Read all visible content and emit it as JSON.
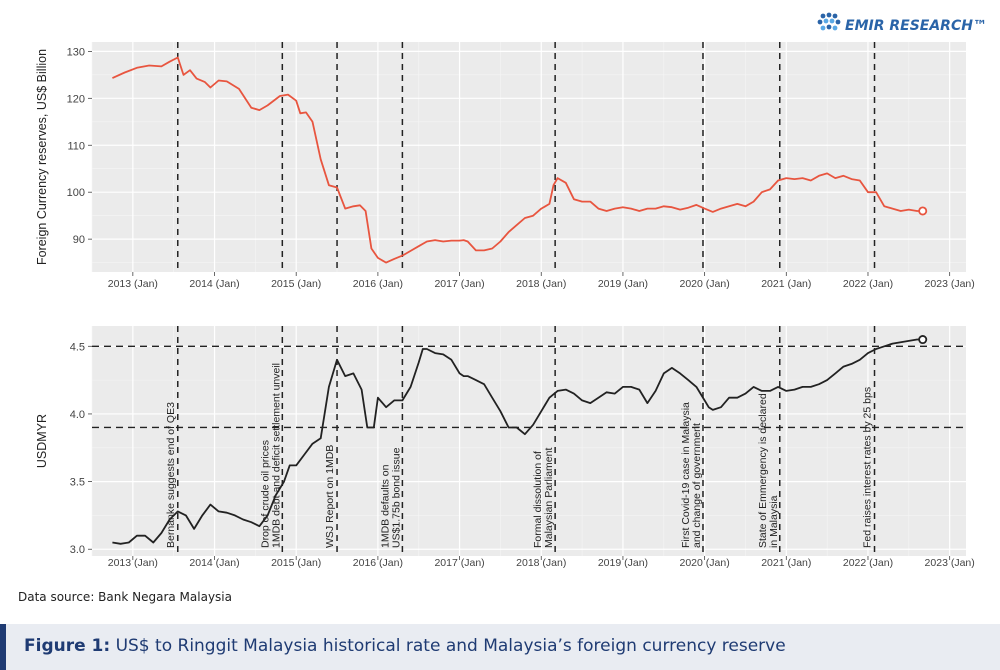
{
  "brand": {
    "logo_text": "EMIR RESEARCH™",
    "accent": "#2a64a8"
  },
  "source_note": "Data source: Bank Negara Malaysia",
  "figure_caption": {
    "label": "Figure 1:",
    "text": "US$ to Ringgit Malaysia historical rate and Malaysia’s foreign currency reserve",
    "color": "#1f3b73"
  },
  "chart_data": [
    {
      "type": "line",
      "ylabel": "Foreign Currency reserves, US$ Billion",
      "xlabel": "",
      "x_ticks": [
        "2013 (Jan)",
        "2014 (Jan)",
        "2015 (Jan)",
        "2016 (Jan)",
        "2017 (Jan)",
        "2018 (Jan)",
        "2019 (Jan)",
        "2020 (Jan)",
        "2021 (Jan)",
        "2022 (Jan)",
        "2023 (Jan)"
      ],
      "y_ticks": [
        90,
        100,
        110,
        120,
        130
      ],
      "ylim": [
        83,
        132
      ],
      "xlim": [
        2012.5,
        2023.2
      ],
      "grid": true,
      "line_color": "#e8553f",
      "series": [
        {
          "x": [
            2012.75,
            2012.9,
            2013.05,
            2013.2,
            2013.35,
            2013.45,
            2013.55,
            2013.62,
            2013.7,
            2013.78,
            2013.88,
            2013.95,
            2014.05,
            2014.15,
            2014.3,
            2014.45,
            2014.55,
            2014.65,
            2014.8,
            2014.9,
            2015.0,
            2015.05,
            2015.12,
            2015.2,
            2015.3,
            2015.4,
            2015.5,
            2015.6,
            2015.7,
            2015.78,
            2015.85,
            2015.92,
            2016.0,
            2016.1,
            2016.2,
            2016.3,
            2016.4,
            2016.5,
            2016.6,
            2016.7,
            2016.8,
            2016.9,
            2017.0,
            2017.05,
            2017.1,
            2017.2,
            2017.3,
            2017.4,
            2017.5,
            2017.6,
            2017.7,
            2017.8,
            2017.9,
            2018.0,
            2018.05,
            2018.1,
            2018.15,
            2018.2,
            2018.3,
            2018.4,
            2018.5,
            2018.6,
            2018.7,
            2018.8,
            2018.9,
            2019.0,
            2019.1,
            2019.2,
            2019.3,
            2019.4,
            2019.5,
            2019.6,
            2019.7,
            2019.8,
            2019.9,
            2020.0,
            2020.1,
            2020.2,
            2020.3,
            2020.4,
            2020.5,
            2020.6,
            2020.7,
            2020.8,
            2020.9,
            2021.0,
            2021.1,
            2021.2,
            2021.3,
            2021.4,
            2021.5,
            2021.6,
            2021.7,
            2021.8,
            2021.9,
            2022.0,
            2022.1,
            2022.2,
            2022.3,
            2022.4,
            2022.5,
            2022.6,
            2022.67
          ],
          "y": [
            124.3,
            125.5,
            126.5,
            127.0,
            126.8,
            127.8,
            128.7,
            125.0,
            126.0,
            124.2,
            123.5,
            122.3,
            123.8,
            123.6,
            122.0,
            118.0,
            117.5,
            118.5,
            120.5,
            120.8,
            119.5,
            116.8,
            117.0,
            115.0,
            107.0,
            101.5,
            101.0,
            96.5,
            97.0,
            97.2,
            96.0,
            88.0,
            86.0,
            85.0,
            85.8,
            86.5,
            87.5,
            88.5,
            89.5,
            89.8,
            89.5,
            89.7,
            89.7,
            89.8,
            89.5,
            87.6,
            87.6,
            88.0,
            89.5,
            91.5,
            93.0,
            94.5,
            95.0,
            96.5,
            97.0,
            97.5,
            101.5,
            103.0,
            102.0,
            98.5,
            98.0,
            98.0,
            96.5,
            96.0,
            96.5,
            96.8,
            96.5,
            96.0,
            96.5,
            96.5,
            97.0,
            96.8,
            96.3,
            96.7,
            97.3,
            96.5,
            95.8,
            96.5,
            97.0,
            97.5,
            97.0,
            98.0,
            100.0,
            100.6,
            102.5,
            103.0,
            102.8,
            103.0,
            102.5,
            103.5,
            104.0,
            103.0,
            103.5,
            102.8,
            102.5,
            100.0,
            100.0,
            97.0,
            96.5,
            96.0,
            96.3,
            96.0,
            96.0
          ]
        }
      ],
      "endpoint_marker": {
        "x": 2022.67,
        "y": 96.0,
        "style": "open-circle"
      },
      "vertical_dashes": [
        2013.55,
        2014.83,
        2015.5,
        2016.3,
        2018.17,
        2019.98,
        2020.92,
        2022.08
      ]
    },
    {
      "type": "line",
      "ylabel": "USDMYR",
      "xlabel": "",
      "x_ticks": [
        "2013 (Jan)",
        "2014 (Jan)",
        "2015 (Jan)",
        "2016 (Jan)",
        "2017 (Jan)",
        "2018 (Jan)",
        "2019 (Jan)",
        "2020 (Jan)",
        "2021 (Jan)",
        "2022 (Jan)",
        "2023 (Jan)"
      ],
      "y_ticks": [
        3.0,
        3.5,
        4.0,
        4.5
      ],
      "ylim": [
        2.95,
        4.65
      ],
      "xlim": [
        2012.5,
        2023.2
      ],
      "grid": true,
      "line_color": "#222222",
      "horizontal_dashes": [
        4.5,
        3.9
      ],
      "series": [
        {
          "x": [
            2012.75,
            2012.85,
            2012.95,
            2013.05,
            2013.15,
            2013.25,
            2013.35,
            2013.45,
            2013.55,
            2013.65,
            2013.75,
            2013.85,
            2013.95,
            2014.05,
            2014.15,
            2014.25,
            2014.35,
            2014.45,
            2014.55,
            2014.65,
            2014.75,
            2014.85,
            2014.92,
            2015.0,
            2015.1,
            2015.2,
            2015.3,
            2015.4,
            2015.5,
            2015.6,
            2015.7,
            2015.8,
            2015.87,
            2015.95,
            2016.0,
            2016.1,
            2016.2,
            2016.3,
            2016.4,
            2016.5,
            2016.55,
            2016.6,
            2016.7,
            2016.8,
            2016.9,
            2017.0,
            2017.05,
            2017.1,
            2017.2,
            2017.3,
            2017.4,
            2017.5,
            2017.6,
            2017.7,
            2017.8,
            2017.9,
            2018.0,
            2018.05,
            2018.1,
            2018.2,
            2018.3,
            2018.4,
            2018.5,
            2018.6,
            2018.7,
            2018.8,
            2018.9,
            2019.0,
            2019.1,
            2019.2,
            2019.3,
            2019.4,
            2019.5,
            2019.6,
            2019.7,
            2019.8,
            2019.9,
            2020.0,
            2020.05,
            2020.1,
            2020.2,
            2020.3,
            2020.4,
            2020.5,
            2020.6,
            2020.7,
            2020.8,
            2020.9,
            2021.0,
            2021.1,
            2021.2,
            2021.3,
            2021.4,
            2021.5,
            2021.6,
            2021.7,
            2021.8,
            2021.9,
            2022.0,
            2022.1,
            2022.2,
            2022.3,
            2022.4,
            2022.5,
            2022.6,
            2022.67
          ],
          "y": [
            3.05,
            3.04,
            3.05,
            3.1,
            3.1,
            3.05,
            3.12,
            3.22,
            3.28,
            3.25,
            3.15,
            3.25,
            3.33,
            3.28,
            3.27,
            3.25,
            3.22,
            3.2,
            3.17,
            3.25,
            3.4,
            3.5,
            3.62,
            3.62,
            3.7,
            3.78,
            3.82,
            4.2,
            4.4,
            4.28,
            4.3,
            4.18,
            3.9,
            3.9,
            4.12,
            4.05,
            4.1,
            4.1,
            4.2,
            4.38,
            4.48,
            4.48,
            4.45,
            4.44,
            4.4,
            4.3,
            4.28,
            4.28,
            4.25,
            4.22,
            4.12,
            4.02,
            3.9,
            3.9,
            3.85,
            3.92,
            4.02,
            4.07,
            4.12,
            4.17,
            4.18,
            4.15,
            4.1,
            4.08,
            4.12,
            4.16,
            4.15,
            4.2,
            4.2,
            4.18,
            4.08,
            4.17,
            4.3,
            4.34,
            4.3,
            4.25,
            4.2,
            4.1,
            4.05,
            4.03,
            4.05,
            4.12,
            4.12,
            4.15,
            4.2,
            4.17,
            4.17,
            4.2,
            4.17,
            4.18,
            4.2,
            4.2,
            4.22,
            4.25,
            4.3,
            4.35,
            4.37,
            4.4,
            4.45,
            4.48,
            4.5,
            4.52,
            4.53,
            4.54,
            4.55,
            4.55
          ]
        }
      ],
      "endpoint_marker": {
        "x": 2022.67,
        "y": 4.55,
        "style": "open-circle"
      },
      "vertical_dashes": [
        2013.55,
        2014.83,
        2015.5,
        2016.3,
        2018.17,
        2019.98,
        2020.92,
        2022.08
      ],
      "annotations": [
        {
          "x": 2013.55,
          "text": "Bernanke suggests end of QE3"
        },
        {
          "x": 2014.83,
          "text": "Drop of crude oil prices\n1MDB debt and deficit settlement unveil"
        },
        {
          "x": 2015.5,
          "text": "WSJ Report on 1MDB"
        },
        {
          "x": 2016.3,
          "text": "1MDB defaults on\nUS$1.75b bond issue"
        },
        {
          "x": 2018.17,
          "text": "Formal dissolution of\nMalaysian Parliament"
        },
        {
          "x": 2019.98,
          "text": "First Covid-19 case in Malaysia\nand change of government"
        },
        {
          "x": 2020.92,
          "text": "State of Emmergency is declared\nin Malaysia"
        },
        {
          "x": 2022.08,
          "text": "Fed raises interest rates by 25 bps"
        }
      ]
    }
  ]
}
